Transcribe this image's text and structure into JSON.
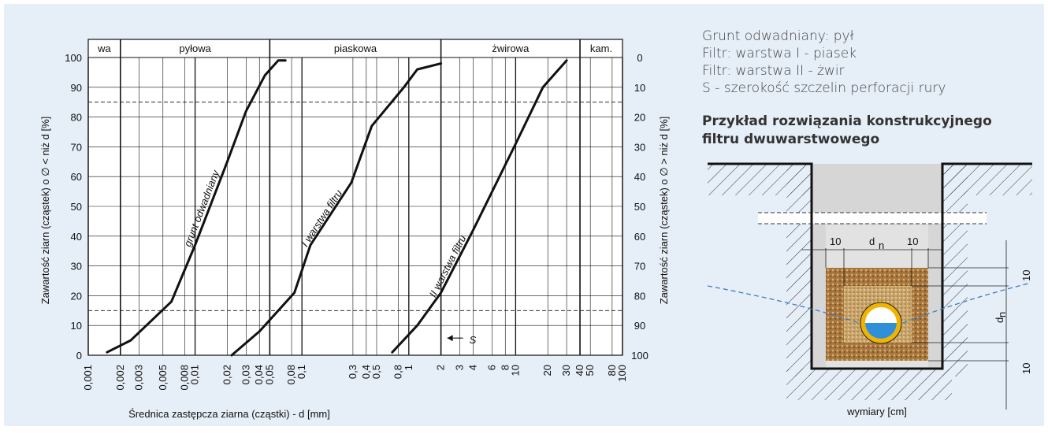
{
  "chart_data": {
    "type": "line",
    "ylabel": "Zawartość ziarn (cząstek) o ∅ < niż d [%]",
    "y2label": "Zawartość ziarn (cząstek) o ∅ > niż  d [%]",
    "xlabel": "Średnica zastępcza ziarna (cząstki) - d [mm]",
    "log_x": true,
    "xlim": [
      0.001,
      100
    ],
    "xticks": [
      {
        "value": 0.001,
        "label": "0,001"
      },
      {
        "value": 0.002,
        "label": "0,002"
      },
      {
        "value": 0.003,
        "label": "0,003"
      },
      {
        "value": 0.005,
        "label": "0,005"
      },
      {
        "value": 0.008,
        "label": "0,008"
      },
      {
        "value": 0.01,
        "label": "0,01"
      },
      {
        "value": 0.02,
        "label": "0,02"
      },
      {
        "value": 0.03,
        "label": "0,03"
      },
      {
        "value": 0.04,
        "label": "0,04"
      },
      {
        "value": 0.05,
        "label": "0,05"
      },
      {
        "value": 0.08,
        "label": "0,08"
      },
      {
        "value": 0.1,
        "label": "0,1"
      },
      {
        "value": 0.3,
        "label": "0,3"
      },
      {
        "value": 0.4,
        "label": "0,4"
      },
      {
        "value": 0.5,
        "label": "0,5"
      },
      {
        "value": 0.8,
        "label": "0,8"
      },
      1,
      2,
      3,
      4,
      6,
      8,
      10,
      20,
      30,
      40,
      50,
      80,
      100
    ],
    "ylim": [
      0,
      100
    ],
    "yticks": [
      0,
      10,
      20,
      30,
      40,
      50,
      60,
      70,
      80,
      90,
      100
    ],
    "y2lim": [
      100,
      0
    ],
    "y2ticks": [
      0,
      10,
      20,
      30,
      40,
      50,
      60,
      70,
      80,
      90,
      100
    ],
    "grid": true,
    "reference_lines_y": [
      15,
      85
    ],
    "fraction_bands": [
      "wa",
      "pyłowa",
      "piaskowa",
      "żwirowa",
      "kam."
    ],
    "fraction_edges": [
      0.002,
      0.05,
      2,
      40
    ],
    "series": [
      {
        "name": "grunt odwadniany",
        "color": "#111111",
        "x": [
          0.0015,
          0.0025,
          0.006,
          0.01,
          0.02,
          0.03,
          0.045,
          0.06,
          0.07
        ],
        "values": [
          1,
          5,
          18,
          37,
          65,
          82,
          94,
          99,
          99
        ]
      },
      {
        "name": "I warstwa filtru",
        "color": "#111111",
        "x": [
          0.022,
          0.04,
          0.085,
          0.12,
          0.29,
          0.45,
          0.9,
          1.2,
          2
        ],
        "values": [
          0,
          8,
          21,
          37,
          58,
          77,
          90,
          96,
          98
        ]
      },
      {
        "name": "II warstwa filtru",
        "color": "#111111",
        "x": [
          0.7,
          1.2,
          2,
          4,
          10,
          18,
          30
        ],
        "values": [
          1,
          10,
          21,
          42,
          71,
          90,
          99
        ]
      }
    ],
    "annotation": "S"
  },
  "notes": [
    "Grunt odwadniany: pył",
    "Filtr: warstwa I - piasek",
    "Filtr: warstwa II - żwir",
    "S - szerokość szczelin perforacji rury"
  ],
  "diagram": {
    "title": "Przykład rozwiązania konstrukcyjnego filtru dwuwarstwowego",
    "dimension_labels": [
      "10",
      "d",
      "n",
      "10",
      "10",
      "d",
      "n",
      "10"
    ],
    "caption": "wymiary [cm]"
  }
}
